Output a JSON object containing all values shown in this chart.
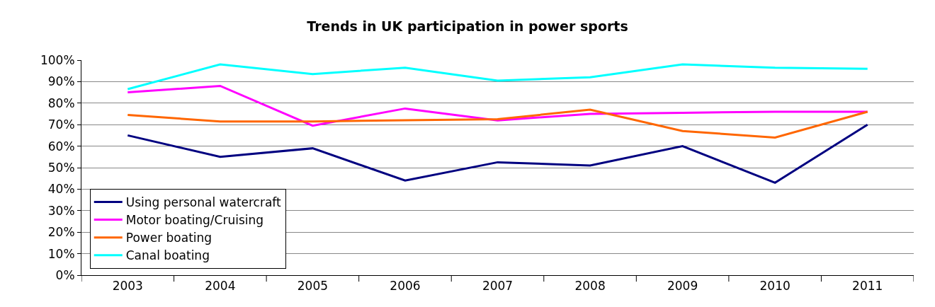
{
  "chart_data": {
    "type": "line",
    "title": "Trends in UK participation in power sports",
    "categories": [
      "2003",
      "2004",
      "2005",
      "2006",
      "2007",
      "2008",
      "2009",
      "2010",
      "2011"
    ],
    "series": [
      {
        "name": "Using personal watercraft",
        "color": "#000080",
        "values": [
          0.65,
          0.55,
          0.59,
          0.44,
          0.525,
          0.51,
          0.6,
          0.43,
          0.7
        ]
      },
      {
        "name": "Motor boating/Cruising",
        "color": "#ff00ff",
        "values": [
          0.85,
          0.88,
          0.695,
          0.775,
          0.72,
          0.75,
          0.755,
          0.76,
          0.76
        ]
      },
      {
        "name": "Power boating",
        "color": "#ff6600",
        "values": [
          0.745,
          0.715,
          0.715,
          0.72,
          0.725,
          0.77,
          0.67,
          0.64,
          0.76
        ]
      },
      {
        "name": "Canal boating",
        "color": "#00ffff",
        "values": [
          0.865,
          0.98,
          0.935,
          0.965,
          0.905,
          0.92,
          0.98,
          0.965,
          0.96
        ]
      }
    ],
    "ylim": [
      0,
      1
    ],
    "yticks": [
      {
        "value": 0,
        "label": "0%"
      },
      {
        "value": 0.1,
        "label": "10%"
      },
      {
        "value": 0.2,
        "label": "20%"
      },
      {
        "value": 0.3,
        "label": "30%"
      },
      {
        "value": 0.4,
        "label": "40%"
      },
      {
        "value": 0.5,
        "label": "50%"
      },
      {
        "value": 0.6,
        "label": "60%"
      },
      {
        "value": 0.7,
        "label": "70%"
      },
      {
        "value": 0.8,
        "label": "80%"
      },
      {
        "value": 0.9,
        "label": "90%"
      },
      {
        "value": 1,
        "label": "100%"
      }
    ],
    "grid": "y",
    "legend": "bottom left",
    "marker": "none",
    "line_style": "solid"
  }
}
